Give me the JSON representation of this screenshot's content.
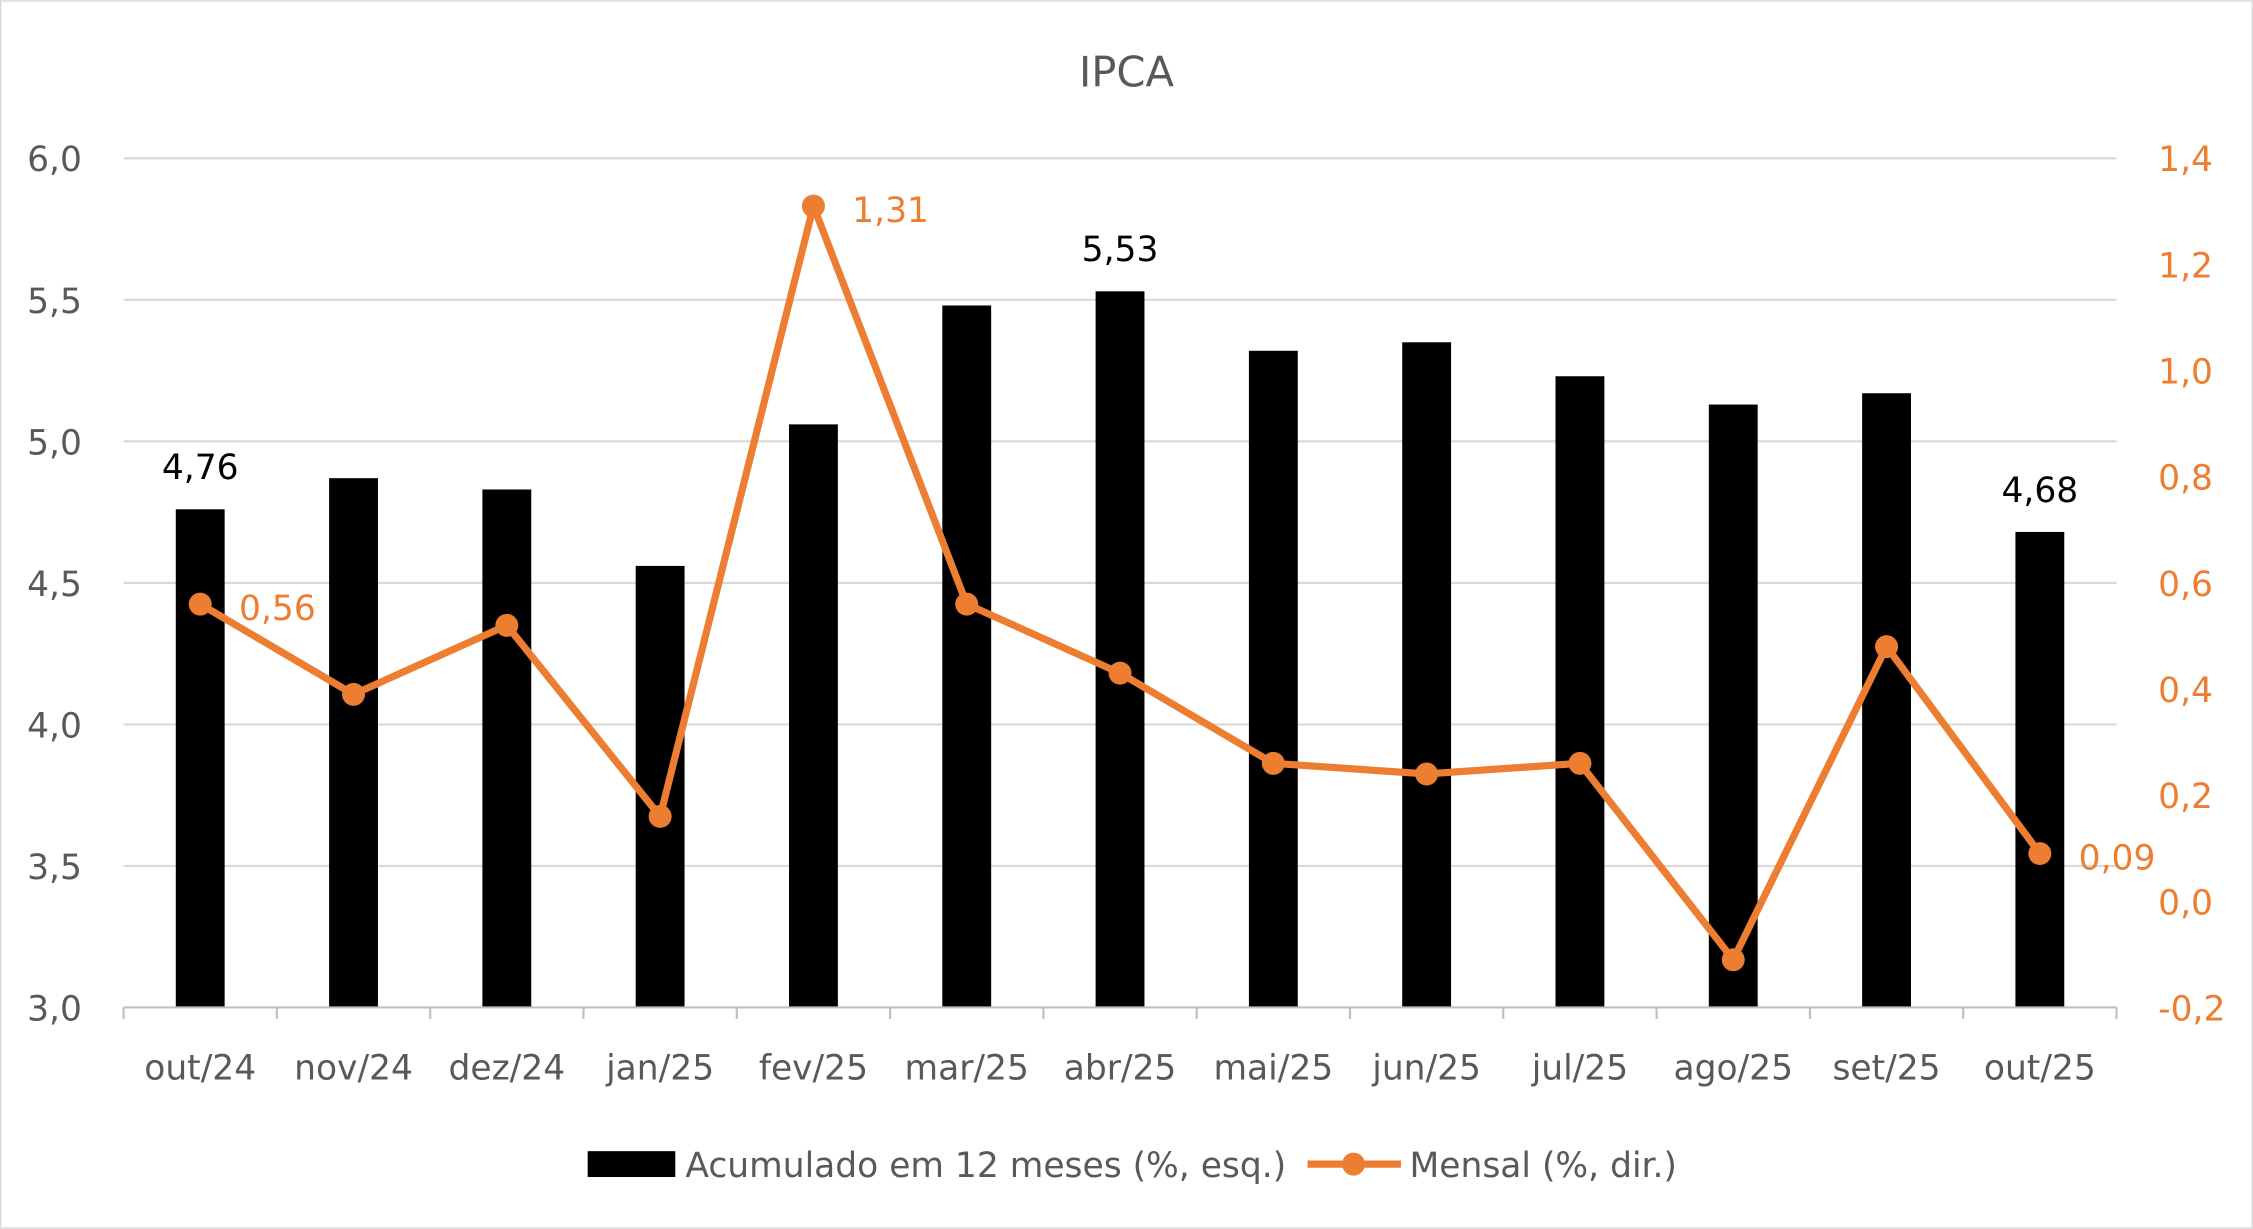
{
  "chart_data": {
    "type": "bar+line",
    "title": "IPCA",
    "categories": [
      "out/24",
      "nov/24",
      "dez/24",
      "jan/25",
      "fev/25",
      "mar/25",
      "abr/25",
      "mai/25",
      "jun/25",
      "jul/25",
      "ago/25",
      "set/25",
      "out/25"
    ],
    "series": [
      {
        "name": "Acumulado em 12 meses (%, esq.)",
        "type": "bar",
        "axis": "left",
        "color": "#000000",
        "values": [
          4.76,
          4.87,
          4.83,
          4.56,
          5.06,
          5.48,
          5.53,
          5.32,
          5.35,
          5.23,
          5.13,
          5.17,
          4.68
        ],
        "data_labels": {
          "0": "4,76",
          "6": "5,53",
          "12": "4,68"
        }
      },
      {
        "name": "Mensal (%, dir.)",
        "type": "line",
        "axis": "right",
        "color": "#ED7D31",
        "values": [
          0.56,
          0.39,
          0.52,
          0.16,
          1.31,
          0.56,
          0.43,
          0.26,
          0.24,
          0.26,
          -0.11,
          0.48,
          0.09
        ],
        "data_labels": {
          "0": "0,56",
          "4": "1,31",
          "12": "0,09"
        }
      }
    ],
    "y_left": {
      "range": [
        3.0,
        6.0
      ],
      "ticks": [
        "3,0",
        "3,5",
        "4,0",
        "4,5",
        "5,0",
        "5,5",
        "6,0"
      ]
    },
    "y_right": {
      "range": [
        -0.2,
        1.4
      ],
      "ticks": [
        "-0,2",
        "0,0",
        "0,2",
        "0,4",
        "0,6",
        "0,8",
        "1,0",
        "1,2",
        "1,4"
      ]
    },
    "grid": true,
    "legend": "bottom"
  }
}
